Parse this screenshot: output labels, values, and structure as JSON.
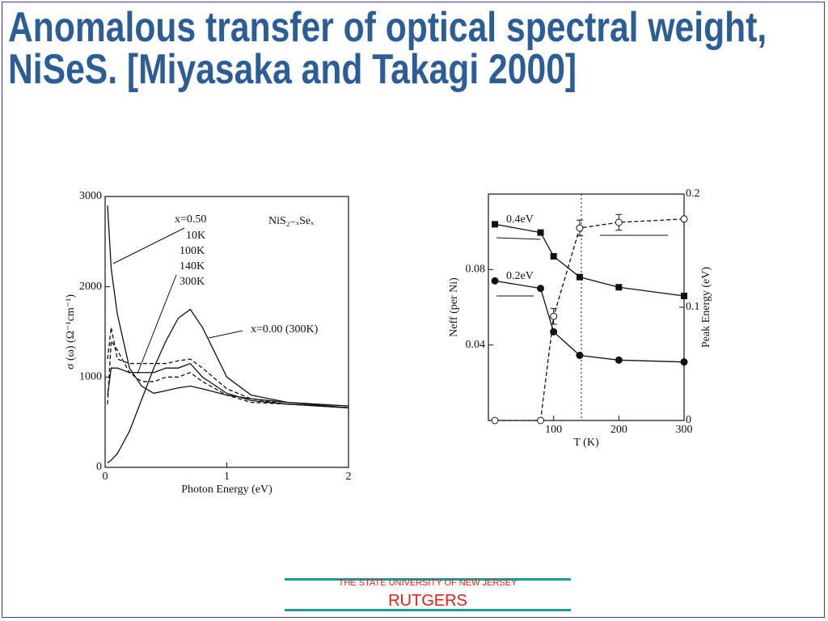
{
  "title": "Anomalous transfer of optical spectral weight, NiSeS. [Miyasaka and Takagi 2000]",
  "chart_data": [
    {
      "type": "line",
      "annotation": "NiS₂₋ₓSeₓ",
      "legend_title": "x=0.50",
      "xlabel": "Photon Energy (eV)",
      "ylabel": "σ (ω) (Ω⁻¹cm⁻¹)",
      "x": [
        0.02,
        0.05,
        0.1,
        0.2,
        0.3,
        0.4,
        0.5,
        0.6,
        0.7,
        0.8,
        1.0,
        1.2,
        1.5,
        2.0
      ],
      "xlim": [
        0,
        2
      ],
      "xticks": [
        0,
        1,
        2
      ],
      "ylim": [
        0,
        3000
      ],
      "yticks": [
        0,
        1000,
        2000,
        3000
      ],
      "series": [
        {
          "name": "10K",
          "color": "#111111",
          "dash": false,
          "values": [
            2900,
            2200,
            1700,
            1100,
            900,
            820,
            850,
            880,
            900,
            870,
            800,
            760,
            720,
            660
          ]
        },
        {
          "name": "100K",
          "color": "#111111",
          "dash": true,
          "values": [
            700,
            1400,
            1300,
            1050,
            950,
            950,
            1000,
            1000,
            1050,
            950,
            800,
            720,
            700,
            660
          ]
        },
        {
          "name": "140K",
          "color": "#111111",
          "dash": false,
          "values": [
            800,
            1100,
            1100,
            1050,
            1050,
            1050,
            1100,
            1100,
            1150,
            1000,
            820,
            740,
            700,
            660
          ]
        },
        {
          "name": "300K",
          "color": "#111111",
          "dash": true,
          "values": [
            1200,
            1550,
            1200,
            1150,
            1150,
            1150,
            1150,
            1180,
            1200,
            1100,
            870,
            760,
            700,
            660
          ]
        },
        {
          "name": "x=0.00 (300K)",
          "color": "#111111",
          "dash": false,
          "values": [
            50,
            80,
            150,
            400,
            750,
            1100,
            1400,
            1650,
            1750,
            1550,
            1000,
            800,
            720,
            680
          ]
        }
      ]
    },
    {
      "type": "line",
      "xlabel": "T (K)",
      "ylabel": "Neff (per Ni)",
      "y2label": "Peak Energy (eV)",
      "x": [
        10,
        80,
        100,
        140,
        200,
        300
      ],
      "xlim": [
        0,
        300
      ],
      "xticks": [
        100,
        200,
        300
      ],
      "ylim": [
        0,
        0.12
      ],
      "yticks": [
        0.04,
        0.08
      ],
      "y2lim": [
        0,
        0.2
      ],
      "y2ticks": [
        0,
        0.1,
        0.2
      ],
      "series": [
        {
          "name": "0.4eV",
          "color": "#111111",
          "dash": false,
          "marker": "square",
          "values": [
            0.104,
            0.0996,
            0.087,
            0.076,
            0.0706,
            0.066
          ]
        },
        {
          "name": "0.2eV",
          "color": "#111111",
          "dash": false,
          "marker": "circle",
          "values": [
            0.074,
            0.07,
            0.047,
            0.0345,
            0.032,
            0.031
          ]
        },
        {
          "color": "#111111",
          "dash": true,
          "marker": "open-circle",
          "axis": "y2",
          "values": [
            0,
            0,
            0.092,
            0.17,
            0.175,
            0.178
          ],
          "errors": [
            0,
            0,
            0.007,
            0.007,
            0.007,
            0
          ]
        }
      ]
    }
  ],
  "footer": {
    "university": "THE STATE UNIVERSITY OF NEW JERSEY",
    "name": "RUTGERS"
  }
}
